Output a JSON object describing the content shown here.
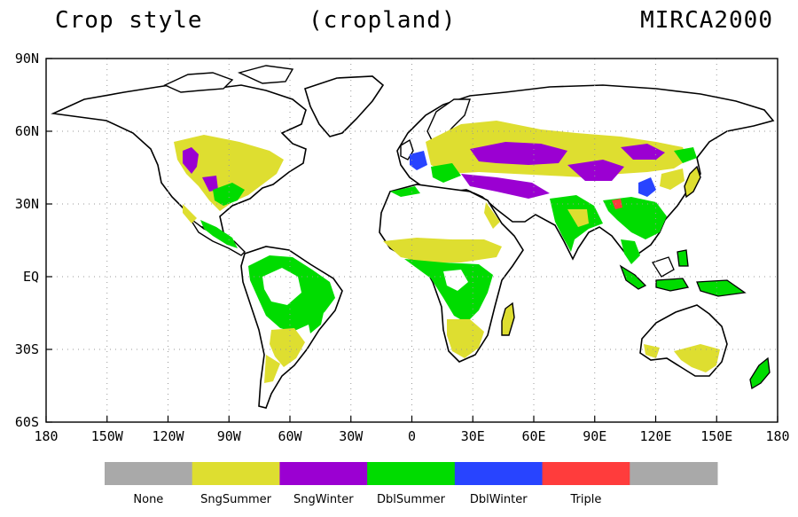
{
  "title": {
    "left": "Crop style",
    "center": "(cropland)",
    "right": "MIRCA2000"
  },
  "map": {
    "lon_range": [
      -180,
      180
    ],
    "lat_range": [
      -60,
      90
    ],
    "lon_ticks": [
      {
        "value": -180,
        "label": "180"
      },
      {
        "value": -150,
        "label": "150W"
      },
      {
        "value": -120,
        "label": "120W"
      },
      {
        "value": -90,
        "label": "90W"
      },
      {
        "value": -60,
        "label": "60W"
      },
      {
        "value": -30,
        "label": "30W"
      },
      {
        "value": 0,
        "label": "0"
      },
      {
        "value": 30,
        "label": "30E"
      },
      {
        "value": 60,
        "label": "60E"
      },
      {
        "value": 90,
        "label": "90E"
      },
      {
        "value": 120,
        "label": "120E"
      },
      {
        "value": 150,
        "label": "150E"
      },
      {
        "value": 180,
        "label": "180"
      }
    ],
    "lat_ticks": [
      {
        "value": 90,
        "label": "90N"
      },
      {
        "value": 60,
        "label": "60N"
      },
      {
        "value": 30,
        "label": "30N"
      },
      {
        "value": 0,
        "label": "EQ"
      },
      {
        "value": -30,
        "label": "30S"
      },
      {
        "value": -60,
        "label": "60S"
      }
    ],
    "grid": "dotted"
  },
  "legend": {
    "items": [
      {
        "label": "None",
        "color": "#a9a9a9"
      },
      {
        "label": "SngSummer",
        "color": "#dede30"
      },
      {
        "label": "SngWinter",
        "color": "#9b00d2"
      },
      {
        "label": "DblSummer",
        "color": "#00dc00"
      },
      {
        "label": "DblWinter",
        "color": "#2844ff"
      },
      {
        "label": "Triple",
        "color": "#ff3c3c"
      },
      {
        "label": "",
        "color": "#a9a9a9"
      }
    ]
  }
}
